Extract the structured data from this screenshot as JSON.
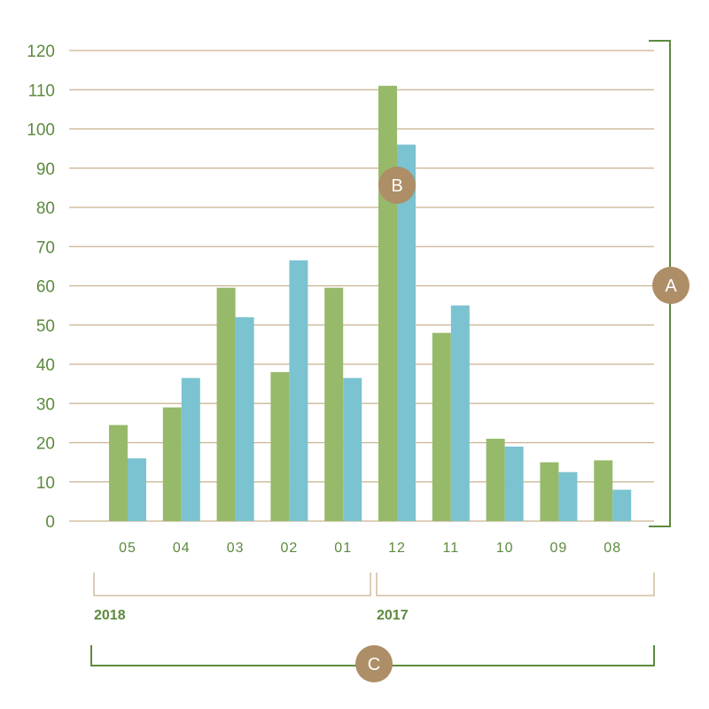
{
  "chart_data": {
    "type": "bar",
    "categories": [
      "05",
      "04",
      "03",
      "02",
      "01",
      "12",
      "11",
      "10",
      "09",
      "08"
    ],
    "series": [
      {
        "values": [
          24.5,
          29,
          59.5,
          38,
          59.5,
          111,
          48,
          21,
          15,
          15.5
        ]
      },
      {
        "values": [
          16,
          36.5,
          52,
          66.5,
          36.5,
          96,
          55,
          19,
          12.5,
          8
        ]
      }
    ],
    "ylim": [
      0,
      120
    ],
    "yticks": [
      0,
      10,
      20,
      30,
      40,
      50,
      60,
      70,
      80,
      90,
      100,
      110,
      120
    ],
    "grid": true,
    "groups": [
      {
        "label": "2018",
        "from": 0,
        "to": 4
      },
      {
        "label": "2017",
        "from": 5,
        "to": 9
      }
    ],
    "annotations": [
      {
        "label": "A",
        "target": "y-axis-range"
      },
      {
        "label": "B",
        "target": "category-12"
      },
      {
        "label": "C",
        "target": "x-axis-range"
      }
    ]
  },
  "colors": {
    "series_1": "#97b96a",
    "series_2": "#7bc3d0",
    "grid": "#c9b28f",
    "text": "#5c8a3e",
    "bracket_green": "#5c8a3e",
    "bracket_tan": "#c9b28f",
    "marker": "#ad8e66"
  }
}
